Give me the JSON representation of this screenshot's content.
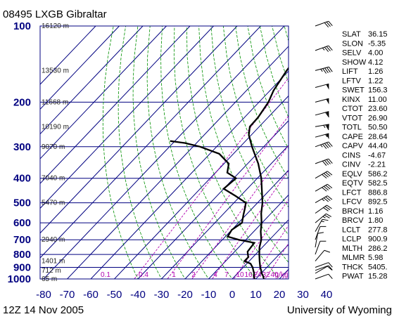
{
  "header": {
    "title": "08495 LXGB Gibraltar"
  },
  "footer": {
    "time": "12Z 14 Nov 2005",
    "source": "University of Wyoming"
  },
  "chart_data": {
    "type": "skew-t",
    "pressure_levels": [
      100,
      200,
      300,
      400,
      500,
      600,
      700,
      800,
      900,
      1000
    ],
    "temperature_ticks": [
      -80,
      -70,
      -60,
      -50,
      -40,
      -30,
      -20,
      -10,
      0,
      10,
      20,
      30,
      40
    ],
    "height_labels": [
      {
        "p": 100,
        "label": "16120 m"
      },
      {
        "p": 150,
        "label": "13530 m"
      },
      {
        "p": 200,
        "label": "11668 m"
      },
      {
        "p": 250,
        "label": "10190 m"
      },
      {
        "p": 300,
        "label": "9070 m"
      },
      {
        "p": 400,
        "label": "7040 m"
      },
      {
        "p": 500,
        "label": "5470 m"
      },
      {
        "p": 700,
        "label": "2940 m"
      },
      {
        "p": 850,
        "label": "1401 m"
      },
      {
        "p": 925,
        "label": "712 m"
      },
      {
        "p": 1000,
        "label": "65 m"
      }
    ],
    "mixing_ratio_labels": [
      "0.1",
      "0.4",
      "1",
      "2",
      "4",
      "7",
      "10",
      "16",
      "24",
      "32",
      "40",
      "g/kg"
    ],
    "temperature_profile": [
      {
        "p": 1012,
        "t": 15.0
      },
      {
        "p": 1000,
        "t": 13.4
      },
      {
        "p": 975,
        "t": 12.0
      },
      {
        "p": 950,
        "t": 10.2
      },
      {
        "p": 925,
        "t": 8.8
      },
      {
        "p": 900,
        "t": 7.2
      },
      {
        "p": 850,
        "t": 4.4
      },
      {
        "p": 800,
        "t": 1.6
      },
      {
        "p": 750,
        "t": -1.2
      },
      {
        "p": 700,
        "t": -3.5
      },
      {
        "p": 650,
        "t": -7.0
      },
      {
        "p": 600,
        "t": -10.2
      },
      {
        "p": 550,
        "t": -14.2
      },
      {
        "p": 500,
        "t": -17.9
      },
      {
        "p": 450,
        "t": -22.8
      },
      {
        "p": 400,
        "t": -28.3
      },
      {
        "p": 350,
        "t": -35.5
      },
      {
        "p": 300,
        "t": -45.0
      },
      {
        "p": 270,
        "t": -51.0
      },
      {
        "p": 250,
        "t": -54.0
      },
      {
        "p": 230,
        "t": -54.2
      },
      {
        "p": 200,
        "t": -56.0
      },
      {
        "p": 180,
        "t": -58.5
      },
      {
        "p": 150,
        "t": -61.0
      },
      {
        "p": 130,
        "t": -62.2
      },
      {
        "p": 115,
        "t": -62.8
      },
      {
        "p": 100,
        "t": -62.5
      }
    ],
    "dewpoint_profile": [
      {
        "p": 1012,
        "t": 11.0
      },
      {
        "p": 1000,
        "t": 9.5
      },
      {
        "p": 975,
        "t": 8.0
      },
      {
        "p": 950,
        "t": 7.0
      },
      {
        "p": 925,
        "t": 5.5
      },
      {
        "p": 900,
        "t": 4.0
      },
      {
        "p": 870,
        "t": 1.6
      },
      {
        "p": 850,
        "t": -2.0
      },
      {
        "p": 820,
        "t": -2.0
      },
      {
        "p": 780,
        "t": -4.5
      },
      {
        "p": 720,
        "t": -5.2
      },
      {
        "p": 700,
        "t": -13.0
      },
      {
        "p": 680,
        "t": -19.0
      },
      {
        "p": 640,
        "t": -20.0
      },
      {
        "p": 600,
        "t": -18.5
      },
      {
        "p": 560,
        "t": -21.0
      },
      {
        "p": 520,
        "t": -23.5
      },
      {
        "p": 500,
        "t": -25.0
      },
      {
        "p": 470,
        "t": -32.0
      },
      {
        "p": 440,
        "t": -40.0
      },
      {
        "p": 400,
        "t": -39.0
      },
      {
        "p": 380,
        "t": -45.0
      },
      {
        "p": 350,
        "t": -48.0
      },
      {
        "p": 320,
        "t": -56.0
      },
      {
        "p": 300,
        "t": -67.0
      },
      {
        "p": 290,
        "t": -75.0
      },
      {
        "p": 285,
        "t": -82.0
      }
    ],
    "wind_barbs": [
      {
        "p": 100,
        "dir": 250,
        "spd": 30
      },
      {
        "p": 125,
        "dir": 250,
        "spd": 35
      },
      {
        "p": 150,
        "dir": 255,
        "spd": 45
      },
      {
        "p": 175,
        "dir": 255,
        "spd": 50
      },
      {
        "p": 200,
        "dir": 255,
        "spd": 50
      },
      {
        "p": 225,
        "dir": 255,
        "spd": 60
      },
      {
        "p": 250,
        "dir": 260,
        "spd": 65
      },
      {
        "p": 275,
        "dir": 255,
        "spd": 55
      },
      {
        "p": 300,
        "dir": 250,
        "spd": 45
      },
      {
        "p": 350,
        "dir": 250,
        "spd": 40
      },
      {
        "p": 400,
        "dir": 240,
        "spd": 40
      },
      {
        "p": 450,
        "dir": 240,
        "spd": 40
      },
      {
        "p": 500,
        "dir": 240,
        "spd": 35
      },
      {
        "p": 550,
        "dir": 235,
        "spd": 30
      },
      {
        "p": 600,
        "dir": 230,
        "spd": 25
      },
      {
        "p": 650,
        "dir": 210,
        "spd": 15
      },
      {
        "p": 700,
        "dir": 200,
        "spd": 10
      },
      {
        "p": 750,
        "dir": 190,
        "spd": 10
      },
      {
        "p": 800,
        "dir": 200,
        "spd": 10
      },
      {
        "p": 850,
        "dir": 220,
        "spd": 10
      },
      {
        "p": 900,
        "dir": 250,
        "spd": 10
      },
      {
        "p": 925,
        "dir": 250,
        "spd": 10
      },
      {
        "p": 950,
        "dir": 240,
        "spd": 10
      },
      {
        "p": 1000,
        "dir": 250,
        "spd": 10
      }
    ]
  },
  "indices": [
    {
      "name": "SLAT",
      "value": "36.15"
    },
    {
      "name": "SLON",
      "value": "-5.35"
    },
    {
      "name": "SELV",
      "value": "4.00"
    },
    {
      "name": "SHOW",
      "value": "4.12"
    },
    {
      "name": "LIFT",
      "value": "1.26"
    },
    {
      "name": "LFTV",
      "value": "1.22"
    },
    {
      "name": "SWET",
      "value": "156.3"
    },
    {
      "name": "KINX",
      "value": "11.00"
    },
    {
      "name": "CTOT",
      "value": "23.60"
    },
    {
      "name": "VTOT",
      "value": "26.90"
    },
    {
      "name": "TOTL",
      "value": "50.50"
    },
    {
      "name": "CAPE",
      "value": "28.64"
    },
    {
      "name": "CAPV",
      "value": "44.40"
    },
    {
      "name": "CINS",
      "value": "-4.67"
    },
    {
      "name": "CINV",
      "value": "-2.21"
    },
    {
      "name": "EQLV",
      "value": "586.2"
    },
    {
      "name": "EQTV",
      "value": "582.5"
    },
    {
      "name": "LFCT",
      "value": "886.8"
    },
    {
      "name": "LFCV",
      "value": "892.5"
    },
    {
      "name": "BRCH",
      "value": "1.16"
    },
    {
      "name": "BRCV",
      "value": "1.80"
    },
    {
      "name": "LCLT",
      "value": "277.8"
    },
    {
      "name": "LCLP",
      "value": "900.9"
    },
    {
      "name": "MLTH",
      "value": "286.2"
    },
    {
      "name": "MLMR",
      "value": "5.98"
    },
    {
      "name": "THCK",
      "value": "5405."
    },
    {
      "name": "PWAT",
      "value": "15.28"
    }
  ],
  "colors": {
    "grid": "#000080",
    "dry_adiabat": "#009000",
    "mixing_ratio": "#b000b0",
    "profile": "#000000"
  }
}
